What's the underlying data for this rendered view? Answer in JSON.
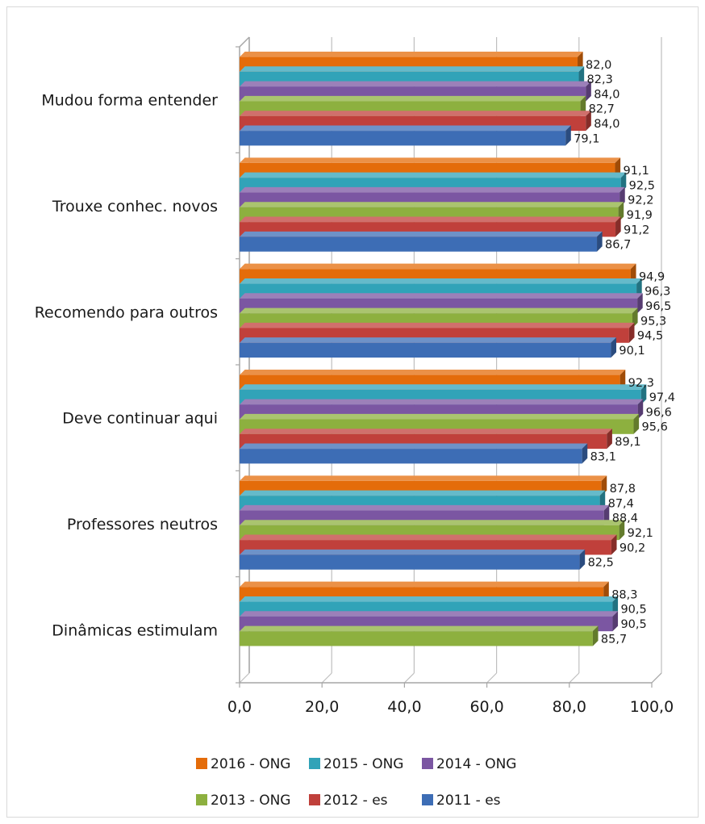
{
  "chart_data": {
    "type": "bar",
    "orientation": "horizontal",
    "style": "3d-clustered",
    "title": "",
    "xlabel": "",
    "ylabel": "",
    "xlim": [
      0,
      100
    ],
    "x_ticks": [
      "0,0",
      "20,0",
      "40,0",
      "60,0",
      "80,0",
      "100,0"
    ],
    "grid": true,
    "legend_position": "bottom",
    "categories": [
      "Mudou forma entender",
      "Trouxe conhec. novos",
      "Recomendo para outros",
      "Deve continuar aqui",
      "Professores neutros",
      "Dinâmicas estimulam"
    ],
    "series": [
      {
        "name": "2016 - ONG",
        "color": "#E46C0A",
        "values": [
          82.0,
          91.1,
          94.9,
          92.3,
          87.8,
          88.3
        ],
        "labels": [
          "82,0",
          "91,1",
          "94,9",
          "92,3",
          "87,8",
          "88,3"
        ]
      },
      {
        "name": "2015 - ONG",
        "color": "#31A3B8",
        "values": [
          82.3,
          92.5,
          96.3,
          97.4,
          87.4,
          90.5
        ],
        "labels": [
          "82,3",
          "92,5",
          "96,3",
          "97,4",
          "87,4",
          "90,5"
        ]
      },
      {
        "name": "2014 - ONG",
        "color": "#7B56A2",
        "values": [
          84.0,
          92.2,
          96.5,
          96.6,
          88.4,
          90.5
        ],
        "labels": [
          "84,0",
          "92,2",
          "96,5",
          "96,6",
          "88,4",
          "90,5"
        ]
      },
      {
        "name": "2013 - ONG",
        "color": "#8DB03F",
        "values": [
          82.7,
          91.9,
          95.3,
          95.6,
          92.1,
          85.7
        ],
        "labels": [
          "82,7",
          "91,9",
          "95,3",
          "95,6",
          "92,1",
          "85,7"
        ]
      },
      {
        "name": "2012 - es",
        "color": "#C0403B",
        "values": [
          84.0,
          91.2,
          94.5,
          89.1,
          90.2,
          null
        ],
        "labels": [
          "84,0",
          "91,2",
          "94,5",
          "89,1",
          "90,2",
          null
        ]
      },
      {
        "name": "2011 - es",
        "color": "#3D6DB5",
        "values": [
          79.1,
          86.7,
          90.1,
          83.1,
          82.5,
          null
        ],
        "labels": [
          "79,1",
          "86,7",
          "90,1",
          "83,1",
          "82,5",
          null
        ]
      }
    ],
    "legend_rows": [
      [
        "2016 - ONG",
        "2015 - ONG",
        "2014 - ONG"
      ],
      [
        "2013 - ONG",
        "2012 - es",
        "2011 - es"
      ]
    ]
  }
}
